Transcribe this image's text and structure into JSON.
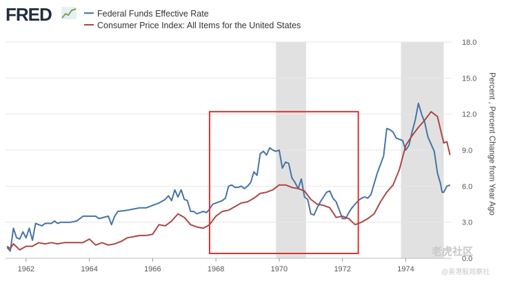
{
  "header": {
    "logo_text": "FRED",
    "logo_icon": "line-chart-icon"
  },
  "chart_data": {
    "type": "line",
    "title": "",
    "xlabel": "",
    "ylabel": "Percent , Percent Change from Year Ago",
    "xlim": [
      1961.35,
      1975.45
    ],
    "ylim": [
      0,
      18
    ],
    "yticks": [
      "0.0",
      "3.0",
      "6.0",
      "9.0",
      "12.0",
      "15.0",
      "18.0"
    ],
    "xticks": [
      "1962",
      "1964",
      "1966",
      "1968",
      "1970",
      "1972",
      "1974"
    ],
    "grid": "horizontal",
    "legend_position": "top-left",
    "recessions": [
      [
        1969.9,
        1970.85
      ],
      [
        1973.85,
        1975.2
      ]
    ],
    "series": [
      {
        "name": "Federal Funds Effective Rate",
        "color": "#4572a7",
        "points": [
          [
            1961.4,
            0.9
          ],
          [
            1961.5,
            0.6
          ],
          [
            1961.6,
            2.5
          ],
          [
            1961.7,
            1.7
          ],
          [
            1961.8,
            1.6
          ],
          [
            1961.9,
            2.2
          ],
          [
            1962.0,
            1.7
          ],
          [
            1962.1,
            2.5
          ],
          [
            1962.2,
            1.5
          ],
          [
            1962.3,
            2.9
          ],
          [
            1962.4,
            2.8
          ],
          [
            1962.5,
            2.7
          ],
          [
            1962.6,
            2.9
          ],
          [
            1962.8,
            2.9
          ],
          [
            1962.9,
            3.1
          ],
          [
            1963.0,
            2.9
          ],
          [
            1963.1,
            3.0
          ],
          [
            1963.4,
            3.0
          ],
          [
            1963.6,
            3.1
          ],
          [
            1963.8,
            3.5
          ],
          [
            1964.2,
            3.5
          ],
          [
            1964.3,
            3.3
          ],
          [
            1964.6,
            3.5
          ],
          [
            1964.7,
            2.8
          ],
          [
            1964.8,
            3.5
          ],
          [
            1964.9,
            3.9
          ],
          [
            1965.2,
            4.0
          ],
          [
            1965.4,
            4.1
          ],
          [
            1965.6,
            4.2
          ],
          [
            1965.8,
            4.2
          ],
          [
            1966.0,
            4.4
          ],
          [
            1966.2,
            4.6
          ],
          [
            1966.4,
            4.9
          ],
          [
            1966.5,
            5.2
          ],
          [
            1966.6,
            4.8
          ],
          [
            1966.7,
            5.7
          ],
          [
            1966.8,
            5.1
          ],
          [
            1966.9,
            5.7
          ],
          [
            1967.0,
            4.9
          ],
          [
            1967.1,
            4.8
          ],
          [
            1967.2,
            3.9
          ],
          [
            1967.3,
            3.9
          ],
          [
            1967.4,
            3.7
          ],
          [
            1967.5,
            3.8
          ],
          [
            1967.6,
            3.9
          ],
          [
            1967.7,
            3.8
          ],
          [
            1967.8,
            4.1
          ],
          [
            1967.9,
            4.5
          ],
          [
            1968.0,
            4.6
          ],
          [
            1968.2,
            4.8
          ],
          [
            1968.3,
            5.0
          ],
          [
            1968.4,
            6.0
          ],
          [
            1968.5,
            6.1
          ],
          [
            1968.6,
            5.9
          ],
          [
            1968.7,
            5.9
          ],
          [
            1968.8,
            6.0
          ],
          [
            1968.9,
            5.8
          ],
          [
            1969.0,
            6.0
          ],
          [
            1969.1,
            6.3
          ],
          [
            1969.2,
            7.2
          ],
          [
            1969.3,
            6.9
          ],
          [
            1969.4,
            8.7
          ],
          [
            1969.5,
            8.9
          ],
          [
            1969.6,
            8.6
          ],
          [
            1969.7,
            9.2
          ],
          [
            1969.8,
            9.0
          ],
          [
            1969.9,
            8.9
          ],
          [
            1970.0,
            9.0
          ],
          [
            1970.1,
            7.5
          ],
          [
            1970.2,
            8.0
          ],
          [
            1970.3,
            7.9
          ],
          [
            1970.4,
            6.7
          ],
          [
            1970.5,
            6.3
          ],
          [
            1970.6,
            5.8
          ],
          [
            1970.7,
            6.6
          ],
          [
            1970.8,
            5.1
          ],
          [
            1970.9,
            4.9
          ],
          [
            1971.0,
            3.7
          ],
          [
            1971.1,
            3.6
          ],
          [
            1971.2,
            4.2
          ],
          [
            1971.3,
            4.7
          ],
          [
            1971.4,
            5.1
          ],
          [
            1971.5,
            5.5
          ],
          [
            1971.6,
            5.6
          ],
          [
            1971.7,
            5.0
          ],
          [
            1971.8,
            4.7
          ],
          [
            1971.9,
            4.0
          ],
          [
            1972.0,
            3.3
          ],
          [
            1972.1,
            3.3
          ],
          [
            1972.2,
            3.8
          ],
          [
            1972.3,
            4.2
          ],
          [
            1972.4,
            4.5
          ],
          [
            1972.5,
            4.8
          ],
          [
            1972.6,
            5.0
          ],
          [
            1972.7,
            5.1
          ],
          [
            1972.8,
            5.0
          ],
          [
            1972.9,
            5.3
          ],
          [
            1973.0,
            6.2
          ],
          [
            1973.1,
            7.1
          ],
          [
            1973.2,
            7.8
          ],
          [
            1973.3,
            8.5
          ],
          [
            1973.4,
            10.8
          ],
          [
            1973.5,
            10.7
          ],
          [
            1973.6,
            10.5
          ],
          [
            1973.7,
            10.0
          ],
          [
            1973.8,
            9.9
          ],
          [
            1973.9,
            9.8
          ],
          [
            1974.0,
            9.0
          ],
          [
            1974.1,
            9.4
          ],
          [
            1974.2,
            10.5
          ],
          [
            1974.3,
            11.5
          ],
          [
            1974.4,
            12.9
          ],
          [
            1974.5,
            12.0
          ],
          [
            1974.6,
            11.3
          ],
          [
            1974.7,
            10.1
          ],
          [
            1974.8,
            9.5
          ],
          [
            1974.9,
            8.9
          ],
          [
            1975.0,
            7.1
          ],
          [
            1975.1,
            6.2
          ],
          [
            1975.15,
            5.5
          ],
          [
            1975.2,
            5.5
          ],
          [
            1975.3,
            6.0
          ],
          [
            1975.4,
            6.1
          ]
        ]
      },
      {
        "name": "Consumer Price Index: All Items for the United States",
        "color": "#aa4643",
        "points": [
          [
            1961.4,
            1.0
          ],
          [
            1961.5,
            0.8
          ],
          [
            1961.6,
            1.2
          ],
          [
            1961.8,
            0.7
          ],
          [
            1962.0,
            1.0
          ],
          [
            1962.2,
            1.0
          ],
          [
            1962.4,
            1.3
          ],
          [
            1962.6,
            1.2
          ],
          [
            1962.8,
            1.3
          ],
          [
            1963.0,
            1.2
          ],
          [
            1963.2,
            1.3
          ],
          [
            1963.4,
            1.3
          ],
          [
            1963.6,
            1.3
          ],
          [
            1963.8,
            1.3
          ],
          [
            1964.0,
            1.6
          ],
          [
            1964.2,
            1.1
          ],
          [
            1964.4,
            1.3
          ],
          [
            1964.6,
            1.1
          ],
          [
            1964.8,
            1.2
          ],
          [
            1965.0,
            1.4
          ],
          [
            1965.2,
            1.7
          ],
          [
            1965.4,
            1.8
          ],
          [
            1965.6,
            1.9
          ],
          [
            1965.8,
            1.9
          ],
          [
            1966.0,
            2.0
          ],
          [
            1966.2,
            2.8
          ],
          [
            1966.4,
            2.7
          ],
          [
            1966.6,
            3.1
          ],
          [
            1966.8,
            3.7
          ],
          [
            1967.0,
            3.4
          ],
          [
            1967.2,
            2.8
          ],
          [
            1967.4,
            2.6
          ],
          [
            1967.6,
            2.5
          ],
          [
            1967.8,
            2.8
          ],
          [
            1968.0,
            3.5
          ],
          [
            1968.2,
            3.9
          ],
          [
            1968.4,
            4.0
          ],
          [
            1968.6,
            4.3
          ],
          [
            1968.8,
            4.6
          ],
          [
            1969.0,
            4.7
          ],
          [
            1969.2,
            5.0
          ],
          [
            1969.4,
            5.4
          ],
          [
            1969.6,
            5.5
          ],
          [
            1969.8,
            5.7
          ],
          [
            1970.0,
            6.1
          ],
          [
            1970.2,
            6.1
          ],
          [
            1970.4,
            5.9
          ],
          [
            1970.6,
            5.8
          ],
          [
            1970.8,
            5.6
          ],
          [
            1971.0,
            4.9
          ],
          [
            1971.2,
            4.5
          ],
          [
            1971.4,
            4.4
          ],
          [
            1971.6,
            4.2
          ],
          [
            1971.8,
            3.4
          ],
          [
            1972.0,
            3.5
          ],
          [
            1972.2,
            3.3
          ],
          [
            1972.4,
            2.8
          ],
          [
            1972.6,
            3.0
          ],
          [
            1972.8,
            3.3
          ],
          [
            1973.0,
            3.7
          ],
          [
            1973.2,
            4.7
          ],
          [
            1973.4,
            5.5
          ],
          [
            1973.6,
            6.1
          ],
          [
            1973.8,
            7.4
          ],
          [
            1974.0,
            9.4
          ],
          [
            1974.2,
            10.2
          ],
          [
            1974.4,
            10.9
          ],
          [
            1974.6,
            11.5
          ],
          [
            1974.8,
            12.2
          ],
          [
            1975.0,
            11.8
          ],
          [
            1975.2,
            9.6
          ],
          [
            1975.3,
            9.7
          ],
          [
            1975.4,
            8.6
          ]
        ]
      }
    ],
    "annotations": [
      {
        "type": "box",
        "color": "#e03030",
        "x0": 1967.8,
        "x1": 1972.5,
        "y0": 0.4,
        "y1": 12.2
      }
    ]
  },
  "watermark": {
    "brand": "老虎社区",
    "sub": "@美港股观察社"
  }
}
